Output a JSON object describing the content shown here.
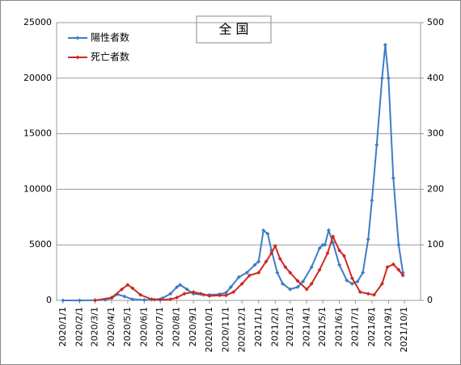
{
  "chart_data": {
    "type": "line",
    "title": "全 国",
    "xlim": [
      "2019/12/20",
      "2021/10/31"
    ],
    "xticks": [
      "2020/1/1",
      "2020/2/1",
      "2020/3/1",
      "2020/4/1",
      "2020/5/1",
      "2020/6/1",
      "2020/7/1",
      "2020/8/1",
      "2020/9/1",
      "2020/10/1",
      "2020/11/1",
      "2020/12/1",
      "2021/1/1",
      "2021/2/1",
      "2021/3/1",
      "2021/4/1",
      "2021/5/1",
      "2021/6/1",
      "2021/7/1",
      "2021/8/1",
      "2021/9/1",
      "2021/10/1"
    ],
    "ylim": [
      0,
      25000
    ],
    "yticks": [
      0,
      5000,
      10000,
      15000,
      20000,
      25000
    ],
    "y2lim": [
      0,
      500
    ],
    "y2ticks": [
      0,
      100,
      200,
      300,
      400,
      500
    ],
    "grid": true,
    "legend": "upper left",
    "series": [
      {
        "name": "陽性者数",
        "color": "#3d7cc9",
        "axis": "y",
        "x": [
          "2020/1/1",
          "2020/2/1",
          "2020/3/1",
          "2020/3/20",
          "2020/4/1",
          "2020/4/12",
          "2020/4/25",
          "2020/5/10",
          "2020/6/1",
          "2020/6/20",
          "2020/7/5",
          "2020/7/20",
          "2020/8/1",
          "2020/8/7",
          "2020/8/20",
          "2020/9/1",
          "2020/9/20",
          "2020/10/1",
          "2020/10/20",
          "2020/11/1",
          "2020/11/10",
          "2020/11/25",
          "2020/12/10",
          "2020/12/25",
          "2021/1/1",
          "2021/1/10",
          "2021/1/18",
          "2021/1/25",
          "2021/2/5",
          "2021/2/15",
          "2021/3/1",
          "2021/3/15",
          "2021/3/25",
          "2021/4/10",
          "2021/4/25",
          "2021/5/1",
          "2021/5/5",
          "2021/5/12",
          "2021/5/20",
          "2021/6/1",
          "2021/6/15",
          "2021/6/25",
          "2021/7/5",
          "2021/7/15",
          "2021/7/25",
          "2021/8/1",
          "2021/8/10",
          "2021/8/20",
          "2021/8/26",
          "2021/9/1",
          "2021/9/10",
          "2021/9/20",
          "2021/9/28"
        ],
        "values": [
          0,
          0,
          20,
          50,
          200,
          550,
          350,
          100,
          40,
          60,
          200,
          600,
          1200,
          1400,
          1000,
          600,
          500,
          500,
          550,
          700,
          1200,
          2100,
          2500,
          3200,
          3500,
          6300,
          6000,
          4500,
          2500,
          1500,
          1000,
          1200,
          1700,
          3000,
          4700,
          5000,
          5000,
          6300,
          5200,
          3200,
          1800,
          1500,
          1700,
          2500,
          5500,
          9000,
          14000,
          20000,
          23000,
          20000,
          11000,
          5000,
          2500
        ]
      },
      {
        "name": "死亡者数",
        "color": "#cc2a24",
        "axis": "y2",
        "x": [
          "2020/3/1",
          "2020/4/1",
          "2020/4/20",
          "2020/5/1",
          "2020/5/10",
          "2020/5/25",
          "2020/6/15",
          "2020/7/1",
          "2020/7/20",
          "2020/8/1",
          "2020/8/15",
          "2020/9/1",
          "2020/9/15",
          "2020/10/1",
          "2020/10/20",
          "2020/11/1",
          "2020/11/15",
          "2020/12/1",
          "2020/12/15",
          "2021/1/1",
          "2021/1/15",
          "2021/1/25",
          "2021/2/1",
          "2021/2/10",
          "2021/2/20",
          "2021/3/1",
          "2021/3/15",
          "2021/4/1",
          "2021/4/10",
          "2021/4/25",
          "2021/5/10",
          "2021/5/20",
          "2021/6/1",
          "2021/6/10",
          "2021/6/25",
          "2021/7/10",
          "2021/7/25",
          "2021/8/5",
          "2021/8/20",
          "2021/8/30",
          "2021/9/10",
          "2021/9/20",
          "2021/9/28"
        ],
        "values": [
          0,
          5,
          20,
          28,
          22,
          10,
          2,
          1,
          2,
          5,
          12,
          15,
          12,
          8,
          9,
          9,
          15,
          30,
          45,
          50,
          70,
          85,
          98,
          75,
          60,
          50,
          35,
          20,
          30,
          55,
          85,
          115,
          90,
          80,
          40,
          15,
          12,
          10,
          30,
          60,
          65,
          55,
          45
        ]
      }
    ]
  }
}
